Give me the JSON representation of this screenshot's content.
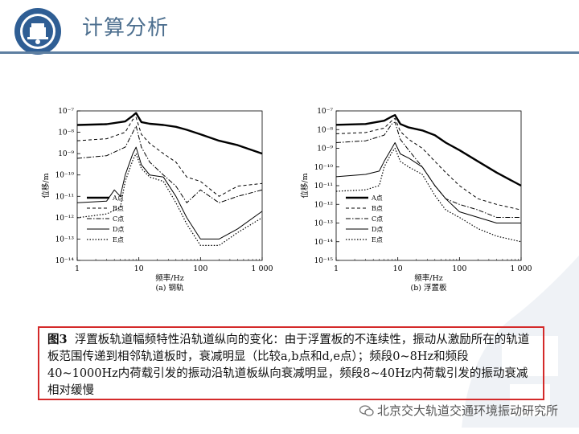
{
  "header": {
    "title": "计算分析"
  },
  "caption": {
    "label": "图3",
    "text": "浮置板轨道幅频特性沿轨道纵向的变化：由于浮置板的不连续性，振动从激励所在的轨道板范围传递到相邻轨道板时，衰减明显（比较a,b点和d,e点）；频段0~8Hz和频段40~1000Hz内荷载引发的振动沿轨道板纵向衰减明显，频段8~40Hz内荷载引发的振动衰减相对缓慢"
  },
  "footer": {
    "source": "北京交大轨道交通环境振动研究所"
  },
  "chart_data": [
    {
      "type": "line",
      "subtitle": "(a) 钢轨",
      "xlabel": "频率/Hz",
      "ylabel": "位移/m",
      "xscale": "log",
      "yscale": "log",
      "xlim": [
        1,
        1000
      ],
      "ylim": [
        1e-14,
        1e-07
      ],
      "xticks": [
        "1",
        "10",
        "100",
        "1 000"
      ],
      "yticks": [
        "10⁻¹⁴",
        "10⁻¹³",
        "10⁻¹²",
        "10⁻¹¹",
        "10⁻¹⁰",
        "10⁻⁹",
        "10⁻⁸",
        "10⁻⁷"
      ],
      "legend_position": "bottom-left",
      "series": [
        {
          "name": "A点",
          "style": "solid-thick",
          "x": [
            1,
            3,
            6,
            8,
            9,
            11,
            15,
            25,
            40,
            60,
            100,
            200,
            400,
            1000
          ],
          "y": [
            2.2e-08,
            2.4e-08,
            3.2e-08,
            6e-08,
            8e-08,
            3e-08,
            2.5e-08,
            2.2e-08,
            1.8e-08,
            1.3e-08,
            8e-09,
            4e-09,
            2.5e-09,
            1e-09
          ]
        },
        {
          "name": "B点",
          "style": "dashed",
          "x": [
            1,
            3,
            6,
            8,
            9,
            11,
            15,
            25,
            40,
            60,
            100,
            200,
            400,
            1000
          ],
          "y": [
            4e-09,
            5e-09,
            1e-08,
            4e-08,
            5e-08,
            8e-09,
            3e-09,
            1e-09,
            4e-10,
            8e-11,
            5e-11,
            1e-11,
            3e-11,
            4e-11
          ]
        },
        {
          "name": "C点",
          "style": "dash-dot",
          "x": [
            1,
            3,
            6,
            8,
            9,
            11,
            15,
            25,
            40,
            60,
            100,
            200,
            400,
            1000
          ],
          "y": [
            6e-10,
            8e-10,
            2e-09,
            1e-08,
            2e-08,
            2e-09,
            4e-10,
            1e-10,
            3e-11,
            5e-12,
            2e-11,
            5e-12,
            1e-11,
            2e-11
          ]
        },
        {
          "name": "D点",
          "style": "solid-thin",
          "x": [
            1,
            3,
            4,
            5,
            6,
            8,
            9,
            11,
            15,
            25,
            40,
            60,
            100,
            200,
            400,
            1000
          ],
          "y": [
            5e-12,
            6e-12,
            2e-11,
            1e-11,
            1e-10,
            1e-09,
            2e-09,
            3e-10,
            1e-10,
            8e-11,
            1e-11,
            1e-12,
            1e-13,
            1e-13,
            3e-13,
            2e-12
          ]
        },
        {
          "name": "E点",
          "style": "dotted",
          "x": [
            1,
            3,
            5,
            6,
            8,
            9,
            11,
            15,
            25,
            40,
            60,
            100,
            200,
            400,
            1000
          ],
          "y": [
            1e-12,
            1.5e-12,
            3e-12,
            5e-11,
            5e-10,
            1e-09,
            2e-10,
            8e-11,
            5e-11,
            5e-12,
            5e-13,
            5e-14,
            5e-14,
            2e-13,
            1e-12
          ]
        }
      ]
    },
    {
      "type": "line",
      "subtitle": "(b) 浮置板",
      "xlabel": "频率/Hz",
      "ylabel": "位移/m",
      "xscale": "log",
      "yscale": "log",
      "xlim": [
        1,
        1000
      ],
      "ylim": [
        1e-15,
        1e-07
      ],
      "xticks": [
        "1",
        "10",
        "100",
        "1 000"
      ],
      "yticks": [
        "10⁻¹⁵",
        "10⁻¹⁴",
        "10⁻¹³",
        "10⁻¹²",
        "10⁻¹¹",
        "10⁻¹⁰",
        "10⁻⁹",
        "10⁻⁸",
        "10⁻⁷"
      ],
      "legend_position": "bottom-left",
      "series": [
        {
          "name": "A点",
          "style": "solid-thick",
          "x": [
            1,
            3,
            6,
            8,
            9,
            11,
            15,
            25,
            40,
            60,
            100,
            200,
            400,
            1000
          ],
          "y": [
            1.8e-08,
            2e-08,
            3e-08,
            5e-08,
            6e-08,
            2e-08,
            1.3e-08,
            9e-09,
            5e-09,
            2e-09,
            8e-10,
            2e-10,
            5e-11,
            1e-11
          ]
        },
        {
          "name": "B点",
          "style": "dashed",
          "x": [
            1,
            3,
            6,
            8,
            9,
            11,
            15,
            25,
            40,
            60,
            100,
            200,
            400,
            1000
          ],
          "y": [
            6e-09,
            7e-09,
            1.2e-08,
            3e-08,
            4e-08,
            8e-09,
            3e-09,
            1e-09,
            2e-10,
            5e-11,
            1e-11,
            2e-12,
            1e-12,
            5e-13
          ]
        },
        {
          "name": "C点",
          "style": "dash-dot",
          "x": [
            1,
            3,
            6,
            8,
            9,
            11,
            15,
            25,
            40,
            60,
            100,
            200,
            400,
            1000
          ],
          "y": [
            2e-09,
            2.5e-09,
            5e-09,
            2e-08,
            2.5e-08,
            3e-09,
            8e-10,
            1e-10,
            1e-11,
            2e-12,
            1e-12,
            5e-13,
            2e-13,
            2e-13
          ]
        },
        {
          "name": "D点",
          "style": "solid-thin",
          "x": [
            1,
            3,
            5,
            6,
            8,
            9,
            11,
            15,
            25,
            40,
            60,
            100,
            200,
            400,
            1000
          ],
          "y": [
            3e-11,
            4e-11,
            6e-11,
            2e-10,
            1e-09,
            2e-09,
            5e-10,
            3e-10,
            1e-10,
            1e-11,
            2e-12,
            4e-13,
            2e-13,
            1e-13,
            1e-13
          ]
        },
        {
          "name": "E点",
          "style": "dotted",
          "x": [
            1,
            3,
            5,
            6,
            8,
            9,
            11,
            15,
            25,
            40,
            60,
            100,
            200,
            400,
            1000
          ],
          "y": [
            5e-12,
            6e-12,
            1e-11,
            1e-10,
            6e-10,
            1e-09,
            2e-10,
            1e-10,
            4e-11,
            3e-12,
            5e-13,
            2e-13,
            5e-14,
            2e-14,
            1e-14
          ]
        }
      ]
    }
  ]
}
